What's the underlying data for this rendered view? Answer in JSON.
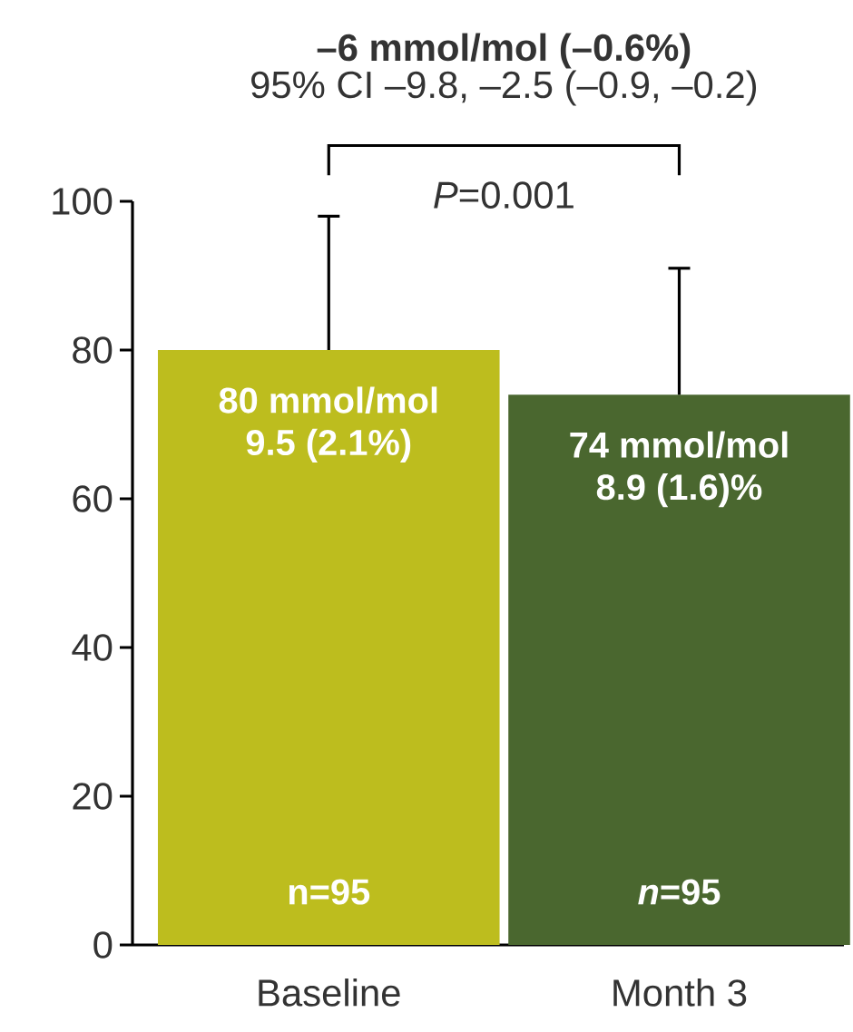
{
  "chart_data": {
    "type": "bar",
    "title": "–6 mmol/mol (–0.6%)",
    "subtitle": "95% CI –9.8, –2.5 (–0.9, –0.2)",
    "categories": [
      "Baseline",
      "Month 3"
    ],
    "values": [
      80,
      74
    ],
    "colors": [
      "#bdbd1e",
      "#4a672f"
    ],
    "errors": [
      [
        80,
        98
      ],
      [
        74,
        91
      ]
    ],
    "value_labels": [
      "80 mmol/mol",
      "74 mmol/mol"
    ],
    "ylim": [
      0,
      100
    ],
    "yticks": [
      0,
      20,
      40,
      60,
      80,
      100
    ],
    "annotations": [
      "*P*=0.001",
      "9.5 (2.1%)",
      "8.9 (1.6)%",
      "n=95",
      "*n*=95"
    ]
  }
}
